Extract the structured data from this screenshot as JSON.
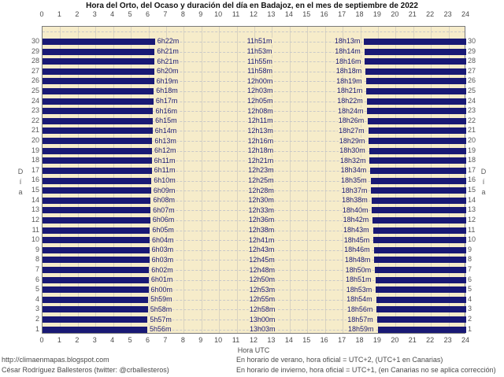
{
  "title": "Hora del Orto, del Ocaso y duración del día en Badajoz, en el mes de septiembre de 2022",
  "axis": {
    "x_label_bottom": "Hora UTC",
    "y_label": "Día",
    "x_ticks": [
      0,
      1,
      2,
      3,
      4,
      5,
      6,
      7,
      8,
      9,
      10,
      11,
      12,
      13,
      14,
      15,
      16,
      17,
      18,
      19,
      20,
      21,
      22,
      23,
      24
    ],
    "y_ticks_top_to_bottom": [
      30,
      29,
      28,
      27,
      26,
      25,
      24,
      23,
      22,
      21,
      20,
      19,
      18,
      17,
      16,
      15,
      14,
      13,
      12,
      11,
      10,
      9,
      8,
      7,
      6,
      5,
      4,
      3,
      2,
      1
    ]
  },
  "colors": {
    "bar_night": "#191975",
    "plot_background": "#f6ecca",
    "vertical_grid": "#d9d3c0",
    "dashed_grid": "#c9c9c9",
    "time_label_text": "#191975"
  },
  "footer": {
    "left_line1": "http://climaenmapas.blogspot.com",
    "left_line2": "César Rodríguez Ballesteros (twitter: @crballesteros)",
    "right_line1": "En horario de verano, hora oficial = UTC+2, (UTC+1 en Canarias)",
    "right_line2": "En horario de invierno, hora oficial = UTC+1, (en Canarias no se aplica corrección)"
  },
  "chart_data": {
    "type": "bar",
    "orientation": "horizontal-night-bars",
    "title": "Hora del Orto, del Ocaso y duración del día en Badajoz, en el mes de septiembre de 2022",
    "xlabel": "Hora UTC",
    "ylabel": "Día",
    "xlim": [
      0,
      24
    ],
    "grid": true,
    "days": [
      {
        "day": 30,
        "orto": "6h22m",
        "duracion": "11h51m",
        "ocaso": "18h13m"
      },
      {
        "day": 29,
        "orto": "6h21m",
        "duracion": "11h53m",
        "ocaso": "18h14m"
      },
      {
        "day": 28,
        "orto": "6h21m",
        "duracion": "11h55m",
        "ocaso": "18h16m"
      },
      {
        "day": 27,
        "orto": "6h20m",
        "duracion": "11h58m",
        "ocaso": "18h18m"
      },
      {
        "day": 26,
        "orto": "6h19m",
        "duracion": "12h00m",
        "ocaso": "18h19m"
      },
      {
        "day": 25,
        "orto": "6h18m",
        "duracion": "12h03m",
        "ocaso": "18h21m"
      },
      {
        "day": 24,
        "orto": "6h17m",
        "duracion": "12h05m",
        "ocaso": "18h22m"
      },
      {
        "day": 23,
        "orto": "6h16m",
        "duracion": "12h08m",
        "ocaso": "18h24m"
      },
      {
        "day": 22,
        "orto": "6h15m",
        "duracion": "12h11m",
        "ocaso": "18h26m"
      },
      {
        "day": 21,
        "orto": "6h14m",
        "duracion": "12h13m",
        "ocaso": "18h27m"
      },
      {
        "day": 20,
        "orto": "6h13m",
        "duracion": "12h16m",
        "ocaso": "18h29m"
      },
      {
        "day": 19,
        "orto": "6h12m",
        "duracion": "12h18m",
        "ocaso": "18h30m"
      },
      {
        "day": 18,
        "orto": "6h11m",
        "duracion": "12h21m",
        "ocaso": "18h32m"
      },
      {
        "day": 17,
        "orto": "6h11m",
        "duracion": "12h23m",
        "ocaso": "18h34m"
      },
      {
        "day": 16,
        "orto": "6h10m",
        "duracion": "12h25m",
        "ocaso": "18h35m"
      },
      {
        "day": 15,
        "orto": "6h09m",
        "duracion": "12h28m",
        "ocaso": "18h37m"
      },
      {
        "day": 14,
        "orto": "6h08m",
        "duracion": "12h30m",
        "ocaso": "18h38m"
      },
      {
        "day": 13,
        "orto": "6h07m",
        "duracion": "12h33m",
        "ocaso": "18h40m"
      },
      {
        "day": 12,
        "orto": "6h06m",
        "duracion": "12h36m",
        "ocaso": "18h42m"
      },
      {
        "day": 11,
        "orto": "6h05m",
        "duracion": "12h38m",
        "ocaso": "18h43m"
      },
      {
        "day": 10,
        "orto": "6h04m",
        "duracion": "12h41m",
        "ocaso": "18h45m"
      },
      {
        "day": 9,
        "orto": "6h03m",
        "duracion": "12h43m",
        "ocaso": "18h46m"
      },
      {
        "day": 8,
        "orto": "6h03m",
        "duracion": "12h45m",
        "ocaso": "18h48m"
      },
      {
        "day": 7,
        "orto": "6h02m",
        "duracion": "12h48m",
        "ocaso": "18h50m"
      },
      {
        "day": 6,
        "orto": "6h01m",
        "duracion": "12h50m",
        "ocaso": "18h51m"
      },
      {
        "day": 5,
        "orto": "6h00m",
        "duracion": "12h53m",
        "ocaso": "18h53m"
      },
      {
        "day": 4,
        "orto": "5h59m",
        "duracion": "12h55m",
        "ocaso": "18h54m"
      },
      {
        "day": 3,
        "orto": "5h58m",
        "duracion": "12h58m",
        "ocaso": "18h56m"
      },
      {
        "day": 2,
        "orto": "5h57m",
        "duracion": "13h00m",
        "ocaso": "18h57m"
      },
      {
        "day": 1,
        "orto": "5h56m",
        "duracion": "13h03m",
        "ocaso": "18h59m"
      }
    ]
  }
}
